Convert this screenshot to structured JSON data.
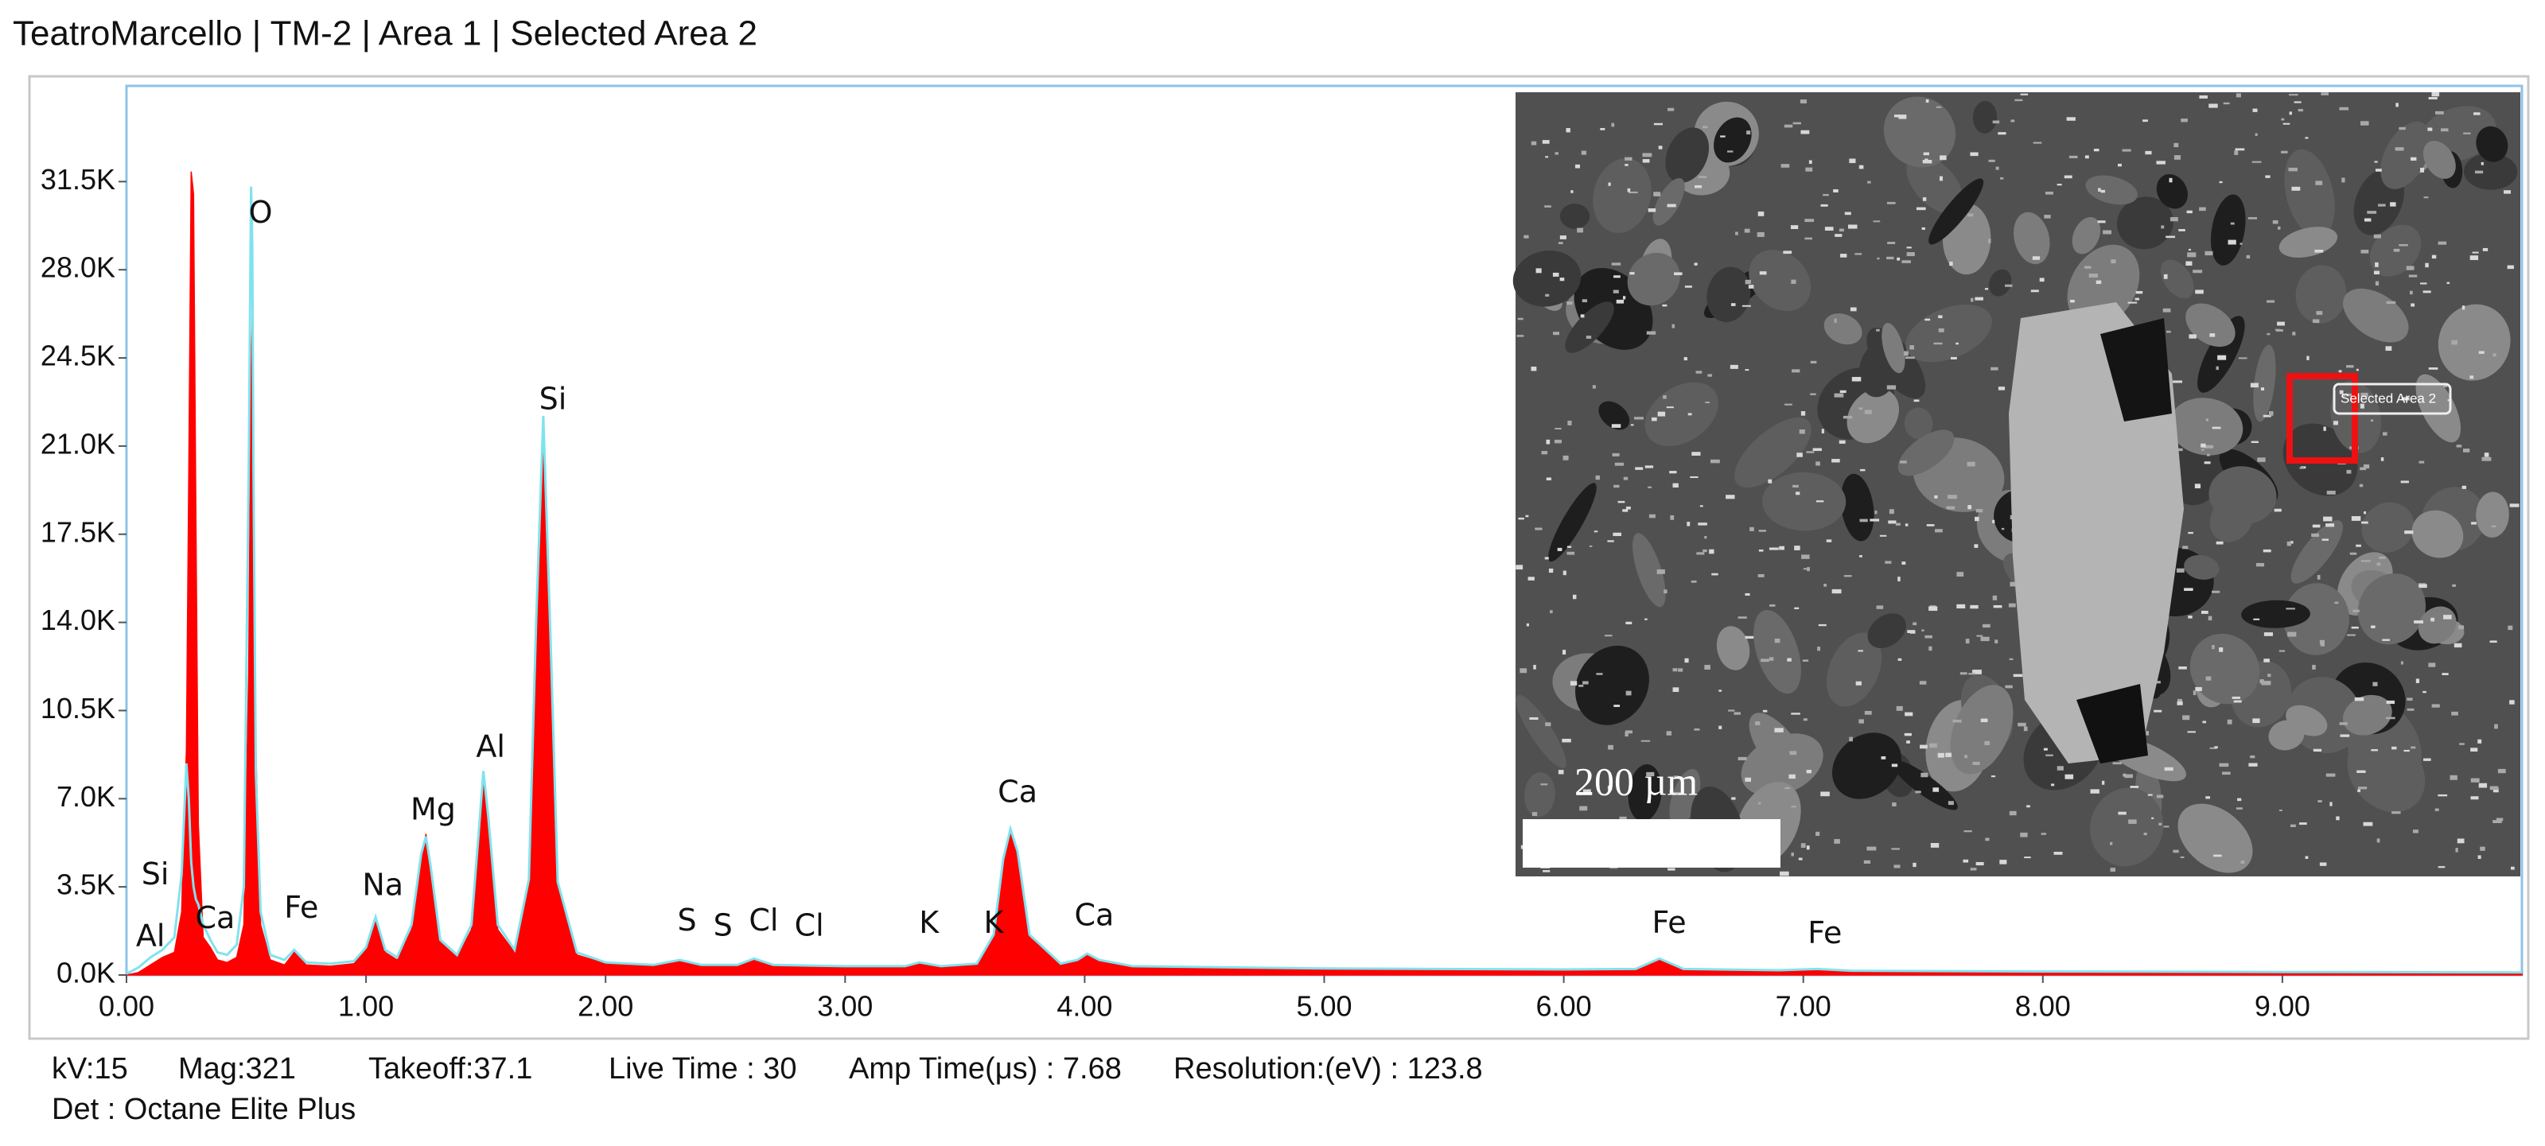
{
  "chart_data": {
    "type": "area",
    "title": "TeatroMarcello | TM-2 | Area 1 | Selected Area 2",
    "x": [
      0,
      0.05,
      0.1,
      0.15,
      0.2,
      0.23,
      0.25,
      0.26,
      0.27,
      0.28,
      0.29,
      0.3,
      0.32,
      0.35,
      0.38,
      0.42,
      0.46,
      0.49,
      0.51,
      0.52,
      0.525,
      0.53,
      0.54,
      0.56,
      0.6,
      0.66,
      0.7,
      0.72,
      0.75,
      0.85,
      0.95,
      1.0,
      1.04,
      1.08,
      1.13,
      1.19,
      1.23,
      1.25,
      1.27,
      1.31,
      1.38,
      1.44,
      1.47,
      1.49,
      1.51,
      1.55,
      1.62,
      1.68,
      1.71,
      1.74,
      1.77,
      1.8,
      1.88,
      2.0,
      2.2,
      2.31,
      2.4,
      2.55,
      2.62,
      2.7,
      3.0,
      3.25,
      3.31,
      3.4,
      3.55,
      3.62,
      3.66,
      3.69,
      3.72,
      3.77,
      3.9,
      3.97,
      4.01,
      4.06,
      4.2,
      5.0,
      6.0,
      6.3,
      6.4,
      6.5,
      6.9,
      7.06,
      7.2,
      8.0,
      9.0,
      10.0
    ],
    "series": [
      {
        "color": "#ff0000",
        "fill": true,
        "values": [
          0,
          100,
          400,
          700,
          900,
          2500,
          9000,
          20000,
          31900,
          31000,
          18000,
          6000,
          1500,
          1100,
          600,
          500,
          700,
          2000,
          12000,
          24000,
          26200,
          22000,
          9000,
          2000,
          600,
          400,
          900,
          700,
          400,
          350,
          450,
          1000,
          2200,
          900,
          600,
          1800,
          4500,
          5600,
          4200,
          1300,
          700,
          1800,
          5200,
          7600,
          6000,
          1800,
          900,
          3500,
          13000,
          21300,
          13000,
          3500,
          800,
          450,
          350,
          550,
          350,
          350,
          600,
          350,
          300,
          300,
          450,
          300,
          400,
          1500,
          4500,
          5700,
          4800,
          1500,
          400,
          550,
          800,
          550,
          300,
          220,
          180,
          200,
          600,
          200,
          150,
          200,
          130,
          100,
          80,
          60
        ]
      },
      {
        "color": "#7fe3ee",
        "fill": false,
        "values": [
          50,
          300,
          700,
          1000,
          1500,
          4000,
          8400,
          7000,
          4500,
          3500,
          3000,
          2800,
          2000,
          1400,
          900,
          800,
          1200,
          3500,
          20000,
          31300,
          29000,
          20000,
          8000,
          2500,
          800,
          600,
          1000,
          800,
          500,
          450,
          550,
          1100,
          2300,
          1000,
          700,
          2000,
          4800,
          5500,
          4300,
          1400,
          800,
          2000,
          5600,
          8100,
          6300,
          2000,
          1000,
          3800,
          14000,
          22200,
          13500,
          3700,
          900,
          500,
          400,
          600,
          400,
          400,
          650,
          400,
          350,
          350,
          500,
          350,
          450,
          1600,
          4600,
          5800,
          4900,
          1600,
          450,
          600,
          850,
          600,
          350,
          260,
          220,
          240,
          650,
          240,
          190,
          240,
          170,
          140,
          120,
          100
        ]
      }
    ],
    "xlim": [
      0,
      10
    ],
    "ylim": [
      0,
      35300
    ],
    "xticks": [
      {
        "value": 0,
        "label": "0.00"
      },
      {
        "value": 1,
        "label": "1.00"
      },
      {
        "value": 2,
        "label": "2.00"
      },
      {
        "value": 3,
        "label": "3.00"
      },
      {
        "value": 4,
        "label": "4.00"
      },
      {
        "value": 5,
        "label": "5.00"
      },
      {
        "value": 6,
        "label": "6.00"
      },
      {
        "value": 7,
        "label": "7.00"
      },
      {
        "value": 8,
        "label": "8.00"
      },
      {
        "value": 9,
        "label": "9.00"
      }
    ],
    "yticks": [
      {
        "value": 0,
        "label": "0.0K"
      },
      {
        "value": 3500,
        "label": "3.5K"
      },
      {
        "value": 7000,
        "label": "7.0K"
      },
      {
        "value": 10500,
        "label": "10.5K"
      },
      {
        "value": 14000,
        "label": "14.0K"
      },
      {
        "value": 17500,
        "label": "17.5K"
      },
      {
        "value": 21000,
        "label": "21.0K"
      },
      {
        "value": 24500,
        "label": "24.5K"
      },
      {
        "value": 28000,
        "label": "28.0K"
      },
      {
        "value": 31500,
        "label": "31.5K"
      }
    ],
    "annotations": [
      {
        "text": "Al",
        "x": 0.1,
        "y": 1480
      },
      {
        "text": "Si",
        "x": 0.12,
        "y": 3930
      },
      {
        "text": "Ca",
        "x": 0.37,
        "y": 2200
      },
      {
        "text": "Fe",
        "x": 0.73,
        "y": 2600
      },
      {
        "text": "O",
        "x": 0.56,
        "y": 30200
      },
      {
        "text": "Na",
        "x": 1.07,
        "y": 3500
      },
      {
        "text": "Mg",
        "x": 1.28,
        "y": 6500
      },
      {
        "text": "Al",
        "x": 1.52,
        "y": 9000
      },
      {
        "text": "Si",
        "x": 1.78,
        "y": 22800
      },
      {
        "text": "S",
        "x": 2.34,
        "y": 2100
      },
      {
        "text": "S",
        "x": 2.49,
        "y": 1900
      },
      {
        "text": "Cl",
        "x": 2.66,
        "y": 2100
      },
      {
        "text": "Cl",
        "x": 2.85,
        "y": 1900
      },
      {
        "text": "K",
        "x": 3.35,
        "y": 2000
      },
      {
        "text": "K",
        "x": 3.62,
        "y": 2000
      },
      {
        "text": "Ca",
        "x": 3.72,
        "y": 7200
      },
      {
        "text": "Ca",
        "x": 4.04,
        "y": 2300
      },
      {
        "text": "Fe",
        "x": 6.44,
        "y": 2000
      },
      {
        "text": "Fe",
        "x": 7.09,
        "y": 1600
      }
    ]
  },
  "inset": {
    "scale_bar": "200 µm",
    "selection": "Selected Area 2"
  },
  "footer": {
    "line1": [
      "kV:15",
      "Mag:321",
      "Takeoff:37.1",
      "Live Time : 30",
      "Amp Time(μs) : 7.68",
      "Resolution:(eV) : 123.8"
    ],
    "line2": "Det : Octane Elite Plus"
  }
}
